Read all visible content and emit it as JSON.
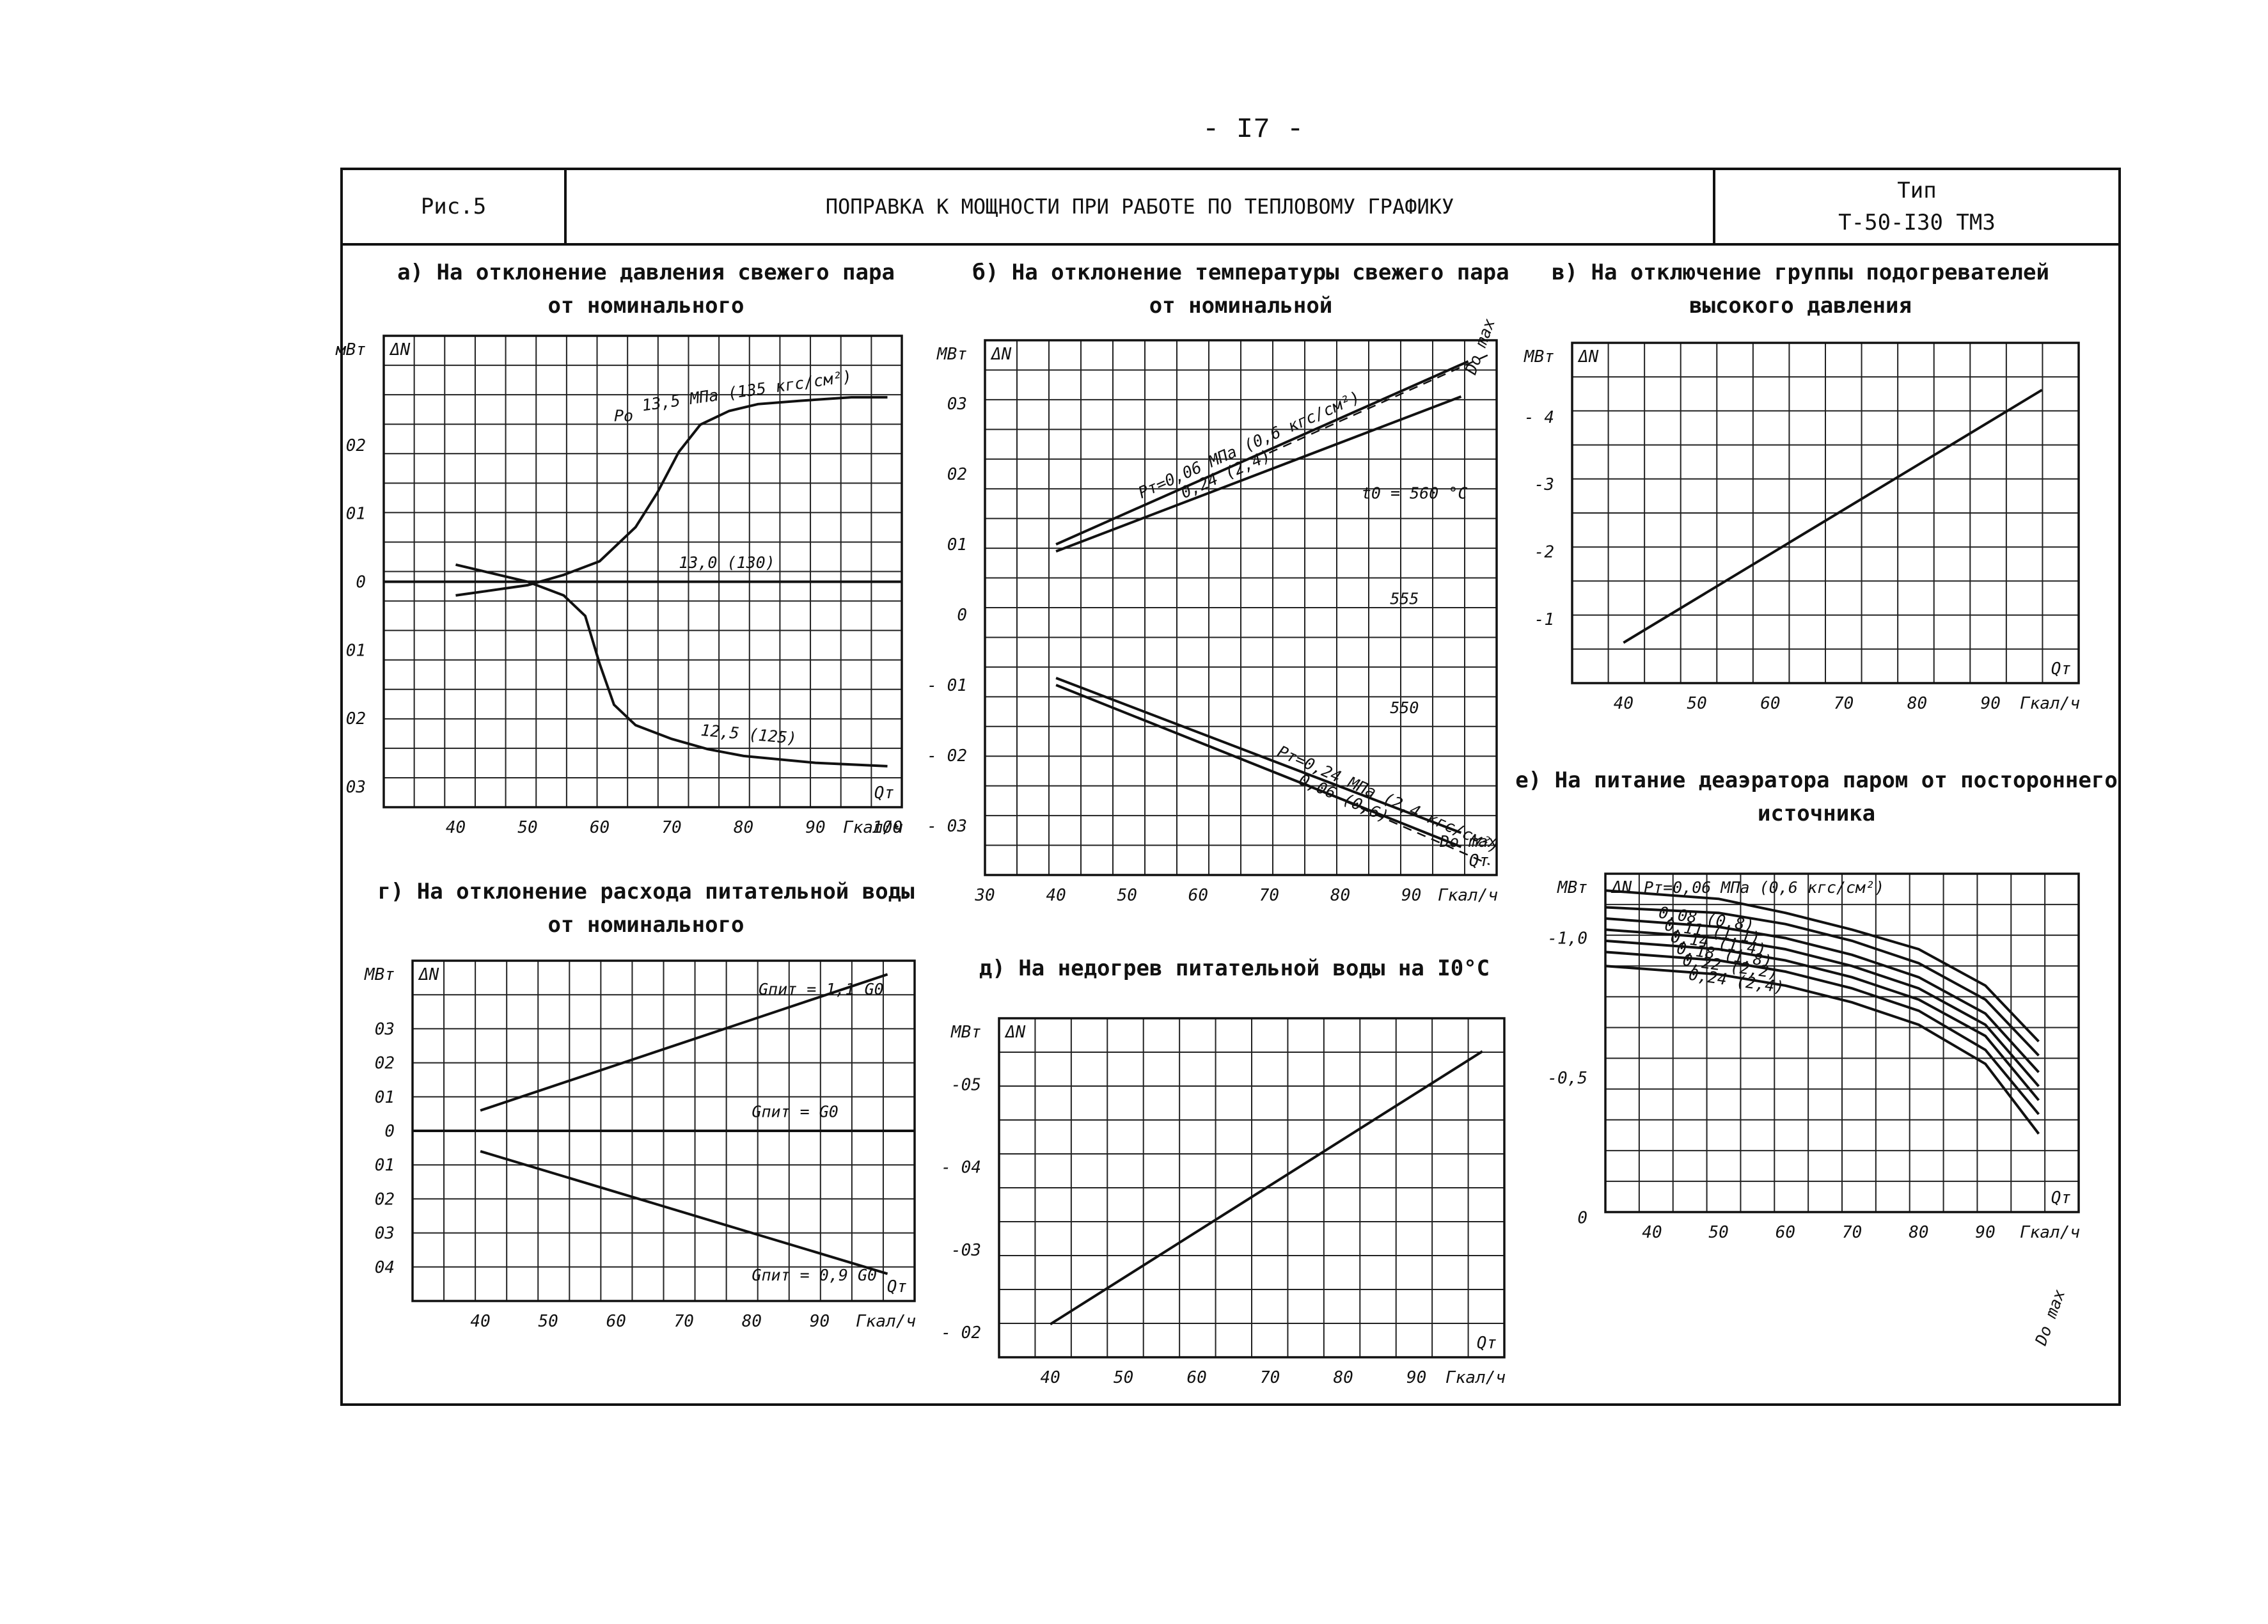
{
  "page_number": "- I7 -",
  "header": {
    "figure": "Рис.5",
    "title": "ПОПРАВКА К МОЩНОСТИ ПРИ РАБОТЕ ПО ТЕПЛОВОМУ ГРАФИКУ",
    "type_label": "Тип",
    "type_value": "Т-50-I30 ТМЗ"
  },
  "chart_data": [
    {
      "id": "a",
      "type": "line",
      "title_lines": [
        "а) На отклонение давления свежего пара",
        "от номинального"
      ],
      "ylabel": "мВт",
      "axis_symbol": "ΔN",
      "xlabel": "Qт",
      "xunit": "Гкал/ч",
      "xlim": [
        30,
        102
      ],
      "ylim": [
        -0.33,
        0.36
      ],
      "xticks": [
        40,
        50,
        60,
        70,
        80,
        90,
        100
      ],
      "yticks": [
        {
          "v": 0.2,
          "t": "02"
        },
        {
          "v": 0.1,
          "t": "01"
        },
        {
          "v": 0,
          "t": "0"
        },
        {
          "v": -0.1,
          "t": "01"
        },
        {
          "v": -0.2,
          "t": "02"
        },
        {
          "v": -0.3,
          "t": "03"
        }
      ],
      "series": [
        {
          "name": "13,5 МПа (135 кгс/см²)",
          "x": [
            40,
            50,
            55,
            60,
            65,
            68,
            71,
            74,
            78,
            82,
            88,
            95,
            100
          ],
          "y": [
            -0.02,
            -0.005,
            0.01,
            0.03,
            0.08,
            0.13,
            0.19,
            0.23,
            0.25,
            0.26,
            0.265,
            0.27,
            0.27
          ]
        },
        {
          "name": "13,0 (130)",
          "x": [
            30,
            102
          ],
          "y": [
            0,
            0
          ]
        },
        {
          "name": "12,5 (125)",
          "x": [
            40,
            50,
            55,
            58,
            60,
            62,
            65,
            70,
            75,
            80,
            90,
            100
          ],
          "y": [
            0.025,
            0.0,
            -0.02,
            -0.05,
            -0.12,
            -0.18,
            -0.21,
            -0.23,
            -0.245,
            -0.255,
            -0.265,
            -0.27
          ]
        }
      ],
      "labels": {
        "po_sym": "Pо",
        "s1": "13,5 МПа (135 кгс/см²)",
        "s2": "13,0 (130)",
        "s3": "12,5 (125)"
      }
    },
    {
      "id": "b",
      "type": "line",
      "title_lines": [
        "б) На отклонение температуры свежего пара",
        "от номинальной"
      ],
      "ylabel": "МВт",
      "axis_symbol": "ΔN",
      "xlabel": "Qт",
      "xunit": "Гкал/ч",
      "xlim": [
        30,
        102
      ],
      "ylim": [
        -0.37,
        0.39
      ],
      "xticks": [
        30,
        40,
        50,
        60,
        70,
        80,
        90
      ],
      "yticks": [
        {
          "v": 0.3,
          "t": "03"
        },
        {
          "v": 0.2,
          "t": "02"
        },
        {
          "v": 0.1,
          "t": "01"
        },
        {
          "v": 0,
          "t": "0"
        },
        {
          "v": -0.1,
          "t": "- 01"
        },
        {
          "v": -0.2,
          "t": "- 02"
        },
        {
          "v": -0.3,
          "t": "- 03"
        }
      ],
      "series": [
        {
          "name": "Pт=0,06 МПа (0,6 кгс/см²), t0=560",
          "x": [
            40,
            98
          ],
          "y": [
            0.1,
            0.36
          ]
        },
        {
          "name": "0,24 (2,4), t0=560",
          "x": [
            40,
            97
          ],
          "y": [
            0.09,
            0.31
          ]
        },
        {
          "name": "Do max dashed upper",
          "x": [
            70,
            101
          ],
          "y": [
            0.23,
            0.37
          ],
          "style": "dashed"
        },
        {
          "name": "Pт=0,24 МПа (2,4 кгс/см²), t0=550",
          "x": [
            40,
            97
          ],
          "y": [
            -0.09,
            -0.31
          ]
        },
        {
          "name": "0,06 (0,6), t0=550",
          "x": [
            40,
            97
          ],
          "y": [
            -0.1,
            -0.33
          ]
        },
        {
          "name": "Do max dashed lower",
          "x": [
            75,
            101
          ],
          "y": [
            -0.24,
            -0.355
          ],
          "style": "dashed"
        }
      ],
      "labels": {
        "p1": "Pт=0,06 МПа (0,6 кгс/см²)",
        "p2": "0,24 (2,4)",
        "t0": "t0 = 560 °C",
        "t555": "555",
        "t550": "550",
        "p3": "Pт=0,24 МПа (2,4 кгс/см²)",
        "p4": "0,06 (0,6)",
        "do": "Do max"
      }
    },
    {
      "id": "v",
      "type": "line",
      "title_lines": [
        "в) На отключение группы подогревателей",
        "высокого давления"
      ],
      "ylabel": "МВт",
      "axis_symbol": "ΔN",
      "xlabel": "Qт",
      "xunit": "Гкал/ч",
      "xlim": [
        33,
        102
      ],
      "ylim": [
        -0.05,
        -5.1
      ],
      "xticks": [
        40,
        50,
        60,
        70,
        80,
        90
      ],
      "yticks": [
        {
          "v": -4,
          "t": "- 4"
        },
        {
          "v": -3,
          "t": "-3"
        },
        {
          "v": -2,
          "t": "-2"
        },
        {
          "v": -1,
          "t": "-1"
        }
      ],
      "series": [
        {
          "name": "ΔN",
          "x": [
            40,
            97
          ],
          "y": [
            -0.65,
            -4.4
          ]
        }
      ]
    },
    {
      "id": "g",
      "type": "line",
      "title_lines": [
        "г) На отклонение расхода питательной воды",
        "от номинального"
      ],
      "ylabel": "МВт",
      "axis_symbol": "ΔN",
      "xlabel": "Qт",
      "xunit": "Гкал/ч",
      "xlim": [
        30,
        104
      ],
      "ylim": [
        -0.5,
        0.5
      ],
      "xticks": [
        40,
        50,
        60,
        70,
        80,
        90
      ],
      "yticks": [
        {
          "v": 0.3,
          "t": "03"
        },
        {
          "v": 0.2,
          "t": "02"
        },
        {
          "v": 0.1,
          "t": "01"
        },
        {
          "v": 0,
          "t": "0"
        },
        {
          "v": -0.1,
          "t": "01"
        },
        {
          "v": -0.2,
          "t": "02"
        },
        {
          "v": -0.3,
          "t": "03"
        },
        {
          "v": -0.4,
          "t": "04"
        }
      ],
      "series": [
        {
          "name": "Gпит = 1,1 G0",
          "x": [
            40,
            100
          ],
          "y": [
            0.06,
            0.46
          ]
        },
        {
          "name": "Gпит = G0",
          "x": [
            30,
            104
          ],
          "y": [
            0,
            0
          ]
        },
        {
          "name": "Gпит = 0,9 G0",
          "x": [
            40,
            100
          ],
          "y": [
            -0.06,
            -0.42
          ]
        }
      ],
      "labels": {
        "g1": "Gпит = 1,1 G0",
        "g2": "Gпит = G0",
        "g3": "Gпит = 0,9 G0"
      }
    },
    {
      "id": "d",
      "type": "line",
      "title_lines": [
        "д) На недогрев питательной воды на I0°C"
      ],
      "ylabel": "МВт",
      "axis_symbol": "ΔN",
      "xlabel": "Qт",
      "xunit": "Гкал/ч",
      "xlim": [
        33,
        102
      ],
      "ylim": [
        -0.17,
        -0.58
      ],
      "xticks": [
        40,
        50,
        60,
        70,
        80,
        90
      ],
      "yticks": [
        {
          "v": -0.5,
          "t": "-05"
        },
        {
          "v": -0.4,
          "t": "- 04"
        },
        {
          "v": -0.3,
          "t": "-03"
        },
        {
          "v": -0.2,
          "t": "- 02"
        }
      ],
      "series": [
        {
          "name": "ΔN",
          "x": [
            40,
            99
          ],
          "y": [
            -0.21,
            -0.54
          ]
        }
      ]
    },
    {
      "id": "e",
      "type": "line",
      "title_lines": [
        "е) На питание деаэратора паром от постороннего",
        "источника"
      ],
      "ylabel": "МВт",
      "axis_symbol": "ΔN",
      "xlabel": "Qт",
      "xunit": "Гкал/ч",
      "xlim": [
        33,
        104
      ],
      "ylim": [
        -0.02,
        -1.23
      ],
      "xticks": [
        40,
        50,
        60,
        70,
        80,
        90
      ],
      "yticks": [
        {
          "v": -1.0,
          "t": "-1,0"
        },
        {
          "v": -0.5,
          "t": "-0,5"
        },
        {
          "v": 0,
          "t": "0"
        }
      ],
      "series": [
        {
          "name": "Pт=0,06 МПа (0,6 кгс/см²)",
          "x": [
            33,
            50,
            60,
            70,
            80,
            90,
            98
          ],
          "y": [
            -1.17,
            -1.14,
            -1.09,
            -1.03,
            -0.96,
            -0.83,
            -0.63
          ]
        },
        {
          "name": "0,08 (0,8)",
          "x": [
            33,
            50,
            60,
            70,
            80,
            90,
            98
          ],
          "y": [
            -1.11,
            -1.09,
            -1.05,
            -0.99,
            -0.91,
            -0.78,
            -0.58
          ]
        },
        {
          "name": "0,11 (1,1)",
          "x": [
            33,
            50,
            60,
            70,
            80,
            90,
            98
          ],
          "y": [
            -1.07,
            -1.04,
            -1.0,
            -0.94,
            -0.86,
            -0.73,
            -0.52
          ]
        },
        {
          "name": "0,14 (1,4)",
          "x": [
            33,
            50,
            60,
            70,
            80,
            90,
            98
          ],
          "y": [
            -1.03,
            -1.0,
            -0.96,
            -0.9,
            -0.82,
            -0.69,
            -0.47
          ]
        },
        {
          "name": "0,18 (1,8)",
          "x": [
            33,
            50,
            60,
            70,
            80,
            90,
            98
          ],
          "y": [
            -0.99,
            -0.96,
            -0.92,
            -0.86,
            -0.78,
            -0.65,
            -0.42
          ]
        },
        {
          "name": "0,22 (2,2)",
          "x": [
            33,
            50,
            60,
            70,
            80,
            90,
            98
          ],
          "y": [
            -0.95,
            -0.92,
            -0.88,
            -0.82,
            -0.74,
            -0.6,
            -0.37
          ]
        },
        {
          "name": "0,24 (2,4)",
          "x": [
            33,
            50,
            60,
            70,
            80,
            90,
            98
          ],
          "y": [
            -0.9,
            -0.87,
            -0.83,
            -0.77,
            -0.69,
            -0.55,
            -0.3
          ]
        }
      ],
      "labels": {
        "do": "Do max"
      }
    }
  ]
}
